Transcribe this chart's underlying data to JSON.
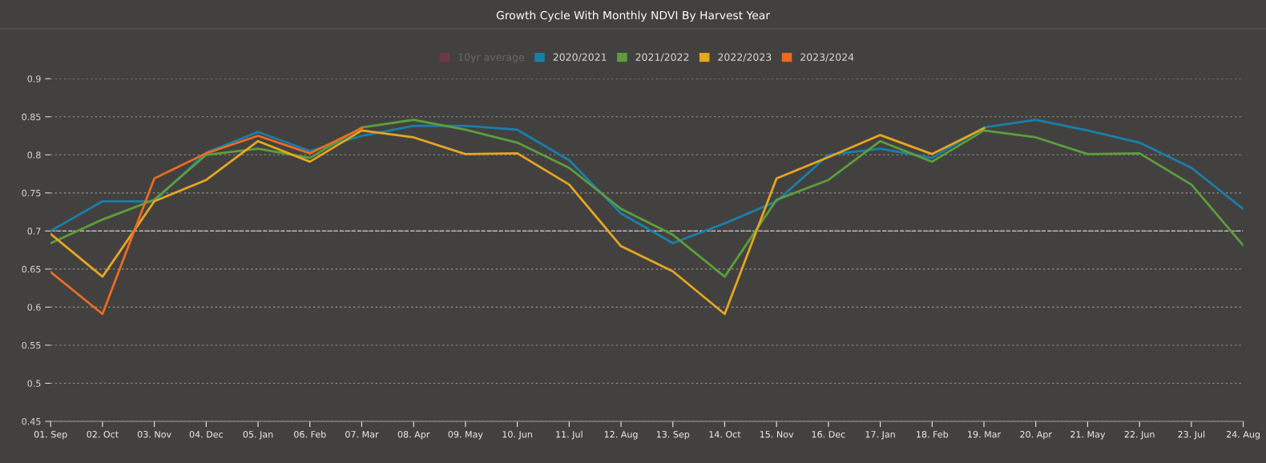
{
  "chart_data": {
    "type": "line",
    "title": "Growth Cycle With Monthly NDVI By Harvest Year",
    "categories": [
      "01. Sep",
      "02. Oct",
      "03. Nov",
      "04. Dec",
      "05. Jan",
      "06. Feb",
      "07. Mar",
      "08. Apr",
      "09. May",
      "10. Jun",
      "11. Jul",
      "12. Aug",
      "13. Sep",
      "14. Oct",
      "15. Nov",
      "16. Dec",
      "17. Jan",
      "18. Feb",
      "19. Mar",
      "20. Apr",
      "21. May",
      "22. Jun",
      "23. Jul",
      "24. Aug"
    ],
    "series": [
      {
        "name": "10yr average",
        "color": "#6b3a44",
        "values": [
          null,
          null,
          null,
          null,
          null,
          null,
          null,
          null,
          null,
          null,
          null,
          null,
          null,
          null,
          null,
          null,
          null,
          null,
          null,
          null,
          null,
          null,
          null,
          null
        ]
      },
      {
        "name": "2020/2021",
        "color": "#1a7fa8",
        "values": [
          0.7,
          0.739,
          0.739,
          0.803,
          0.83,
          0.805,
          0.825,
          0.838,
          0.838,
          0.833,
          0.793,
          0.723,
          0.684,
          0.71,
          0.739,
          0.8,
          0.808,
          0.796,
          0.836,
          0.846,
          0.832,
          0.816,
          0.783,
          0.729
        ]
      },
      {
        "name": "2021/2022",
        "color": "#5c9e3c",
        "values": [
          0.684,
          0.715,
          0.741,
          0.8,
          0.808,
          0.796,
          0.836,
          0.846,
          0.833,
          0.816,
          0.783,
          0.729,
          0.695,
          0.64,
          0.741,
          0.767,
          0.818,
          0.791,
          0.832,
          0.823,
          0.801,
          0.802,
          0.761,
          0.681
        ]
      },
      {
        "name": "2022/2023",
        "color": "#e6a620",
        "values": [
          0.696,
          0.64,
          0.739,
          0.767,
          0.818,
          0.791,
          0.832,
          0.823,
          0.801,
          0.802,
          0.761,
          0.68,
          0.647,
          0.591,
          0.769,
          0.797,
          0.826,
          0.801,
          0.835,
          null,
          null,
          null,
          null,
          null
        ]
      },
      {
        "name": "2023/2024",
        "color": "#ec6b21",
        "values": [
          0.646,
          0.591,
          0.769,
          0.802,
          0.825,
          0.802,
          0.835,
          null,
          null,
          null,
          null,
          null,
          null,
          null,
          null,
          null,
          null,
          null,
          null,
          null,
          null,
          null,
          null,
          null
        ]
      }
    ],
    "ylim": [
      0.45,
      0.9
    ],
    "yticks": [
      0.45,
      0.5,
      0.55,
      0.6,
      0.65,
      0.7,
      0.75,
      0.8,
      0.85,
      0.9
    ],
    "ref_lines": [
      {
        "axis": "y",
        "value": 0.7,
        "color": "#d0d0d0",
        "line_style": "dashed"
      }
    ],
    "grid": "y",
    "legend": "top",
    "marker": "none",
    "line_style": "solid"
  }
}
